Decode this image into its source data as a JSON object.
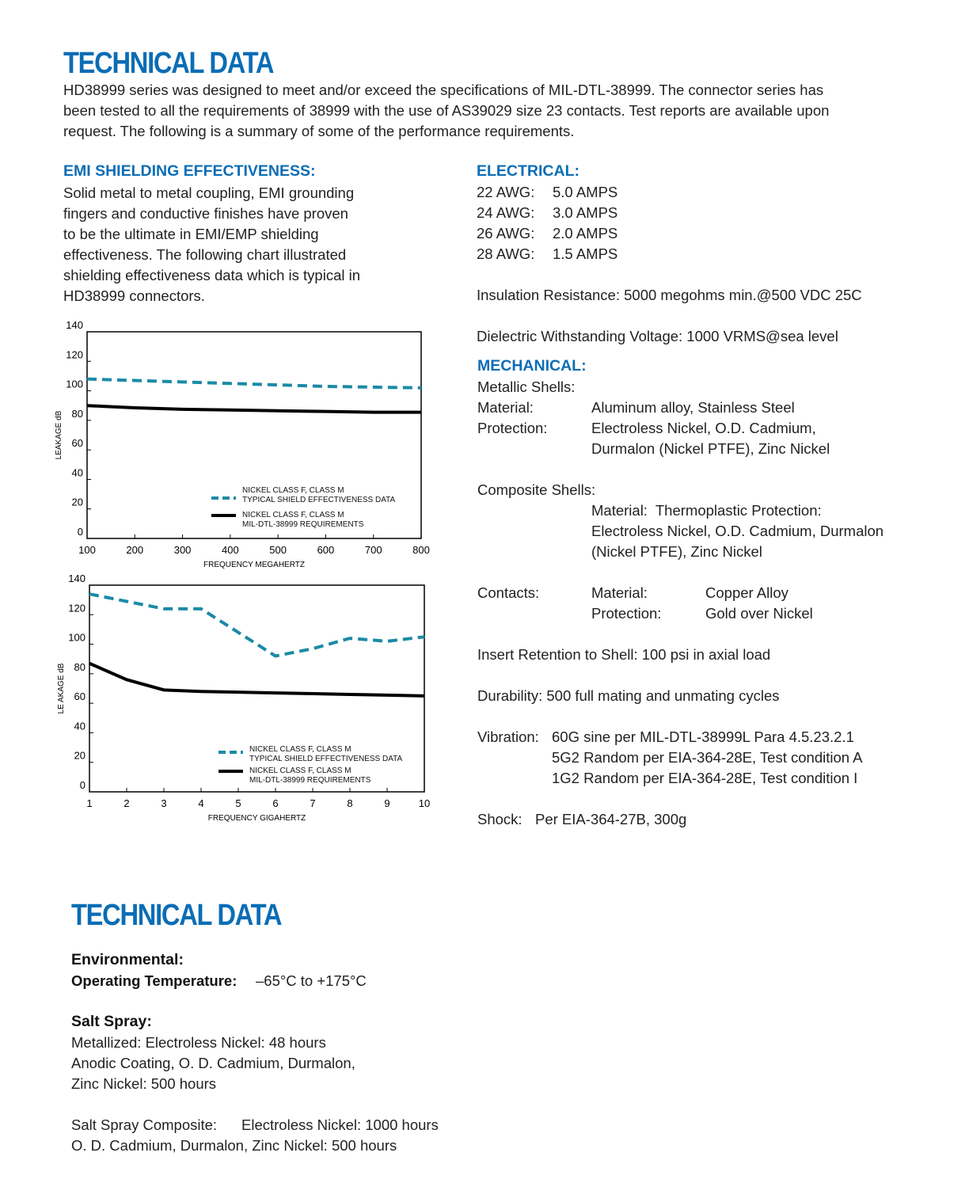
{
  "page1": {
    "title": "TECHNICAL DATA",
    "intro": [
      "HD38999 series was designed to meet and/or exceed the specifications of MIL-DTL-38999. The connector series has",
      "been tested to all the requirements of 38999 with the use of AS39029 size 23 contacts. Test reports are available upon",
      "request. The following is a summary of some of the performance requirements."
    ],
    "emi": {
      "heading": "EMI SHIELDING EFFECTIVENESS:",
      "lines": [
        "Solid metal to metal coupling, EMI grounding",
        "fingers and conductive finishes have proven",
        "to be the ultimate in EMI/EMP shielding",
        "effectiveness. The following chart illustrated",
        "shielding effectiveness data which is typical in",
        "HD38999 connectors."
      ]
    },
    "electrical": {
      "heading": "ELECTRICAL:",
      "rows": [
        [
          "22 AWG:",
          "5.0 AMPS"
        ],
        [
          "24 AWG:",
          "3.0 AMPS"
        ],
        [
          "26 AWG:",
          "2.0 AMPS"
        ],
        [
          "28 AWG:",
          "1.5 AMPS"
        ]
      ],
      "insulation": "Insulation Resistance: 5000 megohms min.@500 VDC 25C",
      "dielectric": "Dielectric Withstanding Voltage: 1000 VRMS@sea level"
    },
    "mechanical": {
      "heading": "MECHANICAL:",
      "metallic_shells": "Metallic Shells:",
      "material": [
        "Material:",
        "Aluminum alloy, Stainless Steel"
      ],
      "protection": {
        "label": "Protection:",
        "lines": [
          "Electroless Nickel, O.D. Cadmium,",
          "Durmalon (Nickel PTFE), Zinc Nickel"
        ]
      },
      "composite_shells": "Composite Shells:",
      "composite_lines": [
        "Material:  Thermoplastic Protection:",
        "Electroless Nickel, O.D. Cadmium, Durmalon",
        "(Nickel PTFE), Zinc Nickel"
      ],
      "contacts": {
        "label": "Contacts:",
        "rows": [
          [
            "Material:",
            "Copper Alloy"
          ],
          [
            "Protection:",
            "Gold over Nickel"
          ]
        ]
      },
      "insert_retention": "Insert Retention to Shell: 100 psi in axial load",
      "durability": "Durability: 500 full mating and unmating cycles",
      "vibration": {
        "label": "Vibration:",
        "lines": [
          "60G sine per MIL-DTL-38999L Para 4.5.23.2.1",
          "5G2 Random per EIA-364-28E, Test condition A",
          "1G2 Random per EIA-364-28E, Test condition I"
        ]
      },
      "shock": {
        "label": "Shock:",
        "value": "Per EIA-364-27B, 300g"
      }
    }
  },
  "chart_data": [
    {
      "type": "line",
      "x_label": "FREQUENCY MEGAHERTZ",
      "y_label": "LEAKAGE dB",
      "x": [
        100,
        200,
        300,
        400,
        500,
        600,
        700,
        800
      ],
      "xlim": [
        100,
        800
      ],
      "xticks": [
        100,
        200,
        300,
        400,
        500,
        600,
        700,
        800
      ],
      "ylim": [
        0,
        140
      ],
      "yticks": [
        0,
        20,
        40,
        60,
        80,
        100,
        120,
        140
      ],
      "series": [
        {
          "name": "NICKEL CLASS F, CLASS M\nTYPICAL SHIELD EFFECTIVENESS DATA",
          "color": "#1b8aa6",
          "dashed": true,
          "values": [
            108,
            107,
            106,
            105,
            104,
            103,
            102.5,
            102
          ]
        },
        {
          "name": "NICKEL CLASS F, CLASS M\nMIL-DTL-38999 REQUIREMENTS",
          "color": "#000000",
          "dashed": false,
          "values": [
            90,
            88.5,
            87.5,
            87,
            86.5,
            86,
            85.5,
            85.5
          ]
        }
      ]
    },
    {
      "type": "line",
      "x_label": "FREQUENCY GIGAHERTZ",
      "y_label": "LE AKAGE dB",
      "x": [
        1,
        2,
        3,
        4,
        5,
        6,
        7,
        8,
        9,
        10
      ],
      "xlim": [
        1,
        10
      ],
      "xticks": [
        1,
        2,
        3,
        4,
        5,
        6,
        7,
        8,
        9,
        10
      ],
      "ylim": [
        0,
        140
      ],
      "yticks": [
        0,
        20,
        40,
        60,
        80,
        100,
        120,
        140
      ],
      "series": [
        {
          "name": "NICKEL CLASS F, CLASS M\nTYPICAL SHIELD EFFECTIVENESS DATA",
          "color": "#1b8aa6",
          "dashed": true,
          "values": [
            134,
            129,
            124,
            124,
            108,
            92,
            97,
            104,
            102,
            105
          ]
        },
        {
          "name": "NICKEL CLASS F, CLASS M\nMIL-DTL-38999 REQUIREMENTS",
          "color": "#000000",
          "dashed": false,
          "values": [
            87,
            76,
            69,
            68,
            67.5,
            67,
            66.5,
            66,
            65.5,
            65
          ]
        }
      ]
    }
  ],
  "page2": {
    "title": "TECHNICAL DATA",
    "environmental": "Environmental:",
    "operating_label": "Operating Temperature:",
    "operating_value": "–65°C to +175°C",
    "salt_spray": "Salt Spray:",
    "salt_lines": [
      "Metallized: Electroless Nickel: 48 hours",
      "Anodic Coating, O. D. Cadmium, Durmalon,",
      "Zinc Nickel: 500 hours"
    ],
    "composite_label": "Salt Spray Composite:",
    "composite_value": "Electroless Nickel: 1000 hours",
    "composite_line2": "O. D. Cadmium, Durmalon, Zinc Nickel: 500 hours"
  }
}
